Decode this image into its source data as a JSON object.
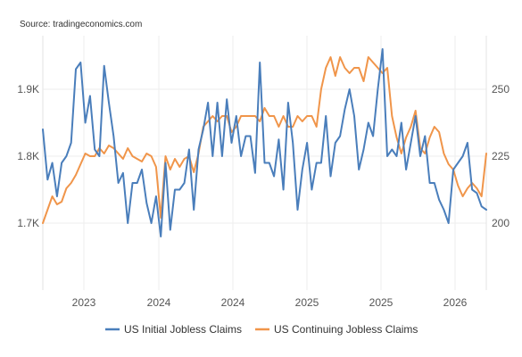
{
  "source": "Source: tradingeconomics.com",
  "chart_data": {
    "type": "line",
    "grid": true,
    "legend_placement": "bottom",
    "x_ticks": [
      "2023",
      "2024",
      "2024",
      "2025",
      "2025",
      "2026"
    ],
    "y_left": {
      "ticks": [
        "1.7K",
        "1.8K",
        "1.9K"
      ],
      "range": [
        1600,
        1980
      ]
    },
    "y_right": {
      "ticks": [
        "200",
        "225",
        "250"
      ],
      "range": [
        175,
        270
      ]
    },
    "series": [
      {
        "name": "US Initial Jobless Claims",
        "axis": "left",
        "color": "#4a7ebb",
        "values": [
          1840,
          1765,
          1790,
          1740,
          1790,
          1800,
          1820,
          1930,
          1940,
          1850,
          1890,
          1810,
          1800,
          1935,
          1880,
          1830,
          1760,
          1775,
          1700,
          1760,
          1760,
          1780,
          1730,
          1700,
          1740,
          1680,
          1790,
          1690,
          1750,
          1750,
          1760,
          1810,
          1720,
          1810,
          1840,
          1880,
          1800,
          1880,
          1800,
          1885,
          1820,
          1860,
          1800,
          1830,
          1830,
          1775,
          1940,
          1790,
          1790,
          1770,
          1825,
          1750,
          1880,
          1820,
          1720,
          1780,
          1820,
          1750,
          1790,
          1790,
          1860,
          1770,
          1820,
          1830,
          1870,
          1900,
          1860,
          1780,
          1810,
          1850,
          1830,
          1900,
          1960,
          1800,
          1810,
          1800,
          1850,
          1780,
          1820,
          1860,
          1800,
          1830,
          1760,
          1760,
          1735,
          1720,
          1700,
          1780,
          1790,
          1800,
          1820,
          1750,
          1745,
          1725,
          1720
        ]
      },
      {
        "name": "US Continuing Jobless Claims",
        "axis": "right",
        "color": "#f0954a",
        "values": [
          200,
          205,
          210,
          207,
          208,
          213,
          215,
          218,
          222,
          226,
          225,
          225,
          228,
          226,
          229,
          228,
          226,
          224,
          228,
          225,
          224,
          223,
          226,
          225,
          221,
          202,
          225,
          220,
          224,
          221,
          224,
          225,
          219,
          226,
          236,
          238,
          240,
          238,
          240,
          240,
          234,
          236,
          240,
          240,
          240,
          240,
          238,
          243,
          240,
          240,
          236,
          240,
          236,
          236,
          240,
          238,
          240,
          240,
          236,
          250,
          258,
          262,
          255,
          262,
          258,
          256,
          258,
          258,
          253,
          262,
          260,
          258,
          256,
          258,
          240,
          232,
          226,
          232,
          236,
          242,
          228,
          226,
          232,
          236,
          234,
          226,
          222,
          220,
          214,
          210,
          213,
          215,
          213,
          210,
          226
        ]
      }
    ]
  }
}
